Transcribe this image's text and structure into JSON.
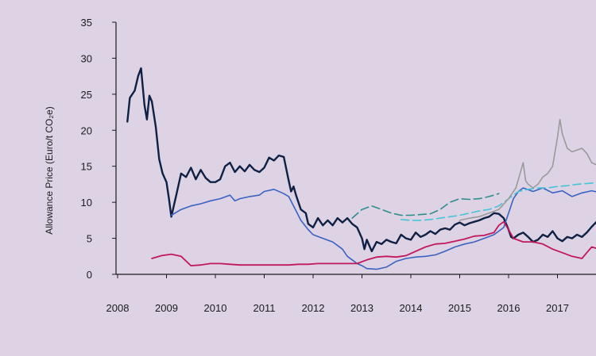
{
  "chart_data": {
    "type": "line",
    "title": "",
    "ylabel": "Allowance Price (Euro/t CO₂e)",
    "xlabel": "",
    "xlim": [
      2008,
      2018
    ],
    "ylim": [
      0,
      35
    ],
    "yticks": [
      0,
      5,
      10,
      15,
      20,
      25,
      30,
      35
    ],
    "xticks": [
      2008,
      2009,
      2010,
      2011,
      2012,
      2013,
      2014,
      2015,
      2016,
      2017
    ],
    "grid": false,
    "legend": "none",
    "series": [
      {
        "name": "series-navy",
        "color": "#0f2044",
        "dash": "",
        "width": 2.4,
        "points": [
          [
            2008.2,
            21.2
          ],
          [
            2008.25,
            24.5
          ],
          [
            2008.35,
            25.5
          ],
          [
            2008.42,
            27.5
          ],
          [
            2008.48,
            28.6
          ],
          [
            2008.55,
            23.5
          ],
          [
            2008.6,
            21.5
          ],
          [
            2008.65,
            24.8
          ],
          [
            2008.7,
            24.0
          ],
          [
            2008.78,
            20.5
          ],
          [
            2008.85,
            16.0
          ],
          [
            2008.92,
            14.0
          ],
          [
            2009.0,
            12.8
          ],
          [
            2009.05,
            10.5
          ],
          [
            2009.1,
            8.0
          ],
          [
            2009.2,
            11.0
          ],
          [
            2009.3,
            14.0
          ],
          [
            2009.4,
            13.5
          ],
          [
            2009.5,
            14.8
          ],
          [
            2009.6,
            13.2
          ],
          [
            2009.7,
            14.5
          ],
          [
            2009.8,
            13.4
          ],
          [
            2009.9,
            12.8
          ],
          [
            2010.0,
            12.8
          ],
          [
            2010.1,
            13.2
          ],
          [
            2010.2,
            15.0
          ],
          [
            2010.3,
            15.5
          ],
          [
            2010.4,
            14.2
          ],
          [
            2010.5,
            15.0
          ],
          [
            2010.6,
            14.3
          ],
          [
            2010.7,
            15.2
          ],
          [
            2010.8,
            14.5
          ],
          [
            2010.9,
            14.2
          ],
          [
            2011.0,
            14.8
          ],
          [
            2011.1,
            16.2
          ],
          [
            2011.2,
            15.8
          ],
          [
            2011.3,
            16.5
          ],
          [
            2011.4,
            16.3
          ],
          [
            2011.5,
            13.0
          ],
          [
            2011.55,
            11.5
          ],
          [
            2011.6,
            12.2
          ],
          [
            2011.65,
            11.0
          ],
          [
            2011.75,
            9.0
          ],
          [
            2011.85,
            8.5
          ],
          [
            2011.9,
            7.0
          ],
          [
            2012.0,
            6.5
          ],
          [
            2012.1,
            7.8
          ],
          [
            2012.2,
            6.8
          ],
          [
            2012.3,
            7.5
          ],
          [
            2012.4,
            6.8
          ],
          [
            2012.5,
            7.8
          ],
          [
            2012.6,
            7.2
          ],
          [
            2012.7,
            7.8
          ],
          [
            2012.8,
            7.0
          ],
          [
            2012.9,
            6.5
          ],
          [
            2013.0,
            5.0
          ],
          [
            2013.05,
            3.5
          ],
          [
            2013.1,
            4.8
          ],
          [
            2013.2,
            3.2
          ],
          [
            2013.3,
            4.5
          ],
          [
            2013.4,
            4.2
          ],
          [
            2013.5,
            4.8
          ],
          [
            2013.6,
            4.5
          ],
          [
            2013.7,
            4.3
          ],
          [
            2013.8,
            5.5
          ],
          [
            2013.9,
            5.0
          ],
          [
            2014.0,
            4.8
          ],
          [
            2014.1,
            5.8
          ],
          [
            2014.2,
            5.2
          ],
          [
            2014.3,
            5.5
          ],
          [
            2014.4,
            6.0
          ],
          [
            2014.5,
            5.6
          ],
          [
            2014.6,
            6.2
          ],
          [
            2014.7,
            6.4
          ],
          [
            2014.8,
            6.2
          ],
          [
            2014.9,
            6.9
          ],
          [
            2015.0,
            7.2
          ],
          [
            2015.1,
            6.8
          ],
          [
            2015.2,
            7.1
          ],
          [
            2015.3,
            7.3
          ],
          [
            2015.4,
            7.5
          ],
          [
            2015.5,
            7.8
          ],
          [
            2015.6,
            8.0
          ],
          [
            2015.7,
            8.5
          ],
          [
            2015.8,
            8.4
          ],
          [
            2015.9,
            7.8
          ],
          [
            2016.0,
            6.2
          ],
          [
            2016.05,
            5.2
          ],
          [
            2016.1,
            5.0
          ],
          [
            2016.2,
            5.5
          ],
          [
            2016.3,
            5.8
          ],
          [
            2016.4,
            5.2
          ],
          [
            2016.5,
            4.5
          ],
          [
            2016.6,
            4.8
          ],
          [
            2016.7,
            5.5
          ],
          [
            2016.8,
            5.2
          ],
          [
            2016.9,
            6.0
          ],
          [
            2017.0,
            5.0
          ],
          [
            2017.1,
            4.6
          ],
          [
            2017.2,
            5.2
          ],
          [
            2017.3,
            5.0
          ],
          [
            2017.4,
            5.5
          ],
          [
            2017.5,
            5.2
          ],
          [
            2017.6,
            5.8
          ],
          [
            2017.7,
            6.6
          ],
          [
            2017.8,
            7.3
          ],
          [
            2017.9,
            7.6
          ]
        ]
      },
      {
        "name": "series-blue",
        "color": "#3a62c2",
        "dash": "",
        "width": 1.6,
        "points": [
          [
            2009.1,
            8.2
          ],
          [
            2009.3,
            9.0
          ],
          [
            2009.5,
            9.5
          ],
          [
            2009.7,
            9.8
          ],
          [
            2009.9,
            10.2
          ],
          [
            2010.1,
            10.5
          ],
          [
            2010.3,
            11.0
          ],
          [
            2010.4,
            10.2
          ],
          [
            2010.5,
            10.5
          ],
          [
            2010.7,
            10.8
          ],
          [
            2010.9,
            11.0
          ],
          [
            2011.0,
            11.5
          ],
          [
            2011.2,
            11.8
          ],
          [
            2011.4,
            11.2
          ],
          [
            2011.5,
            10.8
          ],
          [
            2011.6,
            9.5
          ],
          [
            2011.75,
            7.5
          ],
          [
            2011.9,
            6.2
          ],
          [
            2012.0,
            5.5
          ],
          [
            2012.2,
            5.0
          ],
          [
            2012.4,
            4.5
          ],
          [
            2012.6,
            3.5
          ],
          [
            2012.7,
            2.5
          ],
          [
            2012.8,
            2.0
          ],
          [
            2012.9,
            1.5
          ],
          [
            2013.0,
            1.2
          ],
          [
            2013.1,
            0.8
          ],
          [
            2013.3,
            0.7
          ],
          [
            2013.5,
            1.0
          ],
          [
            2013.7,
            1.8
          ],
          [
            2013.9,
            2.2
          ],
          [
            2014.1,
            2.4
          ],
          [
            2014.3,
            2.5
          ],
          [
            2014.5,
            2.7
          ],
          [
            2014.7,
            3.2
          ],
          [
            2014.9,
            3.8
          ],
          [
            2015.1,
            4.2
          ],
          [
            2015.3,
            4.5
          ],
          [
            2015.5,
            5.0
          ],
          [
            2015.7,
            5.5
          ],
          [
            2015.9,
            6.5
          ],
          [
            2016.0,
            8.5
          ],
          [
            2016.1,
            10.5
          ],
          [
            2016.2,
            11.5
          ],
          [
            2016.3,
            12.0
          ],
          [
            2016.5,
            11.5
          ],
          [
            2016.7,
            12.0
          ],
          [
            2016.9,
            11.3
          ],
          [
            2017.1,
            11.6
          ],
          [
            2017.3,
            10.8
          ],
          [
            2017.5,
            11.3
          ],
          [
            2017.7,
            11.6
          ],
          [
            2017.9,
            11.3
          ]
        ]
      },
      {
        "name": "series-crimson",
        "color": "#c2185b",
        "dash": "",
        "width": 1.8,
        "points": [
          [
            2008.7,
            2.2
          ],
          [
            2008.9,
            2.6
          ],
          [
            2009.1,
            2.8
          ],
          [
            2009.3,
            2.5
          ],
          [
            2009.5,
            1.2
          ],
          [
            2009.7,
            1.3
          ],
          [
            2009.9,
            1.5
          ],
          [
            2010.1,
            1.5
          ],
          [
            2010.3,
            1.4
          ],
          [
            2010.5,
            1.3
          ],
          [
            2010.7,
            1.3
          ],
          [
            2010.9,
            1.3
          ],
          [
            2011.1,
            1.3
          ],
          [
            2011.3,
            1.3
          ],
          [
            2011.5,
            1.3
          ],
          [
            2011.7,
            1.4
          ],
          [
            2011.9,
            1.4
          ],
          [
            2012.1,
            1.5
          ],
          [
            2012.3,
            1.5
          ],
          [
            2012.5,
            1.5
          ],
          [
            2012.7,
            1.5
          ],
          [
            2012.9,
            1.5
          ],
          [
            2013.1,
            2.0
          ],
          [
            2013.3,
            2.4
          ],
          [
            2013.5,
            2.5
          ],
          [
            2013.7,
            2.4
          ],
          [
            2013.9,
            2.6
          ],
          [
            2014.1,
            3.2
          ],
          [
            2014.3,
            3.8
          ],
          [
            2014.5,
            4.2
          ],
          [
            2014.7,
            4.3
          ],
          [
            2014.9,
            4.6
          ],
          [
            2015.1,
            4.9
          ],
          [
            2015.3,
            5.3
          ],
          [
            2015.5,
            5.4
          ],
          [
            2015.7,
            5.8
          ],
          [
            2015.8,
            6.8
          ],
          [
            2015.9,
            7.3
          ],
          [
            2016.0,
            6.2
          ],
          [
            2016.1,
            5.0
          ],
          [
            2016.3,
            4.5
          ],
          [
            2016.5,
            4.5
          ],
          [
            2016.7,
            4.2
          ],
          [
            2016.9,
            3.5
          ],
          [
            2017.1,
            3.0
          ],
          [
            2017.3,
            2.5
          ],
          [
            2017.5,
            2.2
          ],
          [
            2017.6,
            3.0
          ],
          [
            2017.7,
            3.8
          ],
          [
            2017.9,
            3.4
          ]
        ]
      },
      {
        "name": "series-teal-dashed",
        "color": "#2f8c8c",
        "dash": "10,5",
        "width": 1.6,
        "points": [
          [
            2012.8,
            7.8
          ],
          [
            2013.0,
            9.0
          ],
          [
            2013.2,
            9.5
          ],
          [
            2013.4,
            9.0
          ],
          [
            2013.6,
            8.5
          ],
          [
            2013.8,
            8.2
          ],
          [
            2014.0,
            8.2
          ],
          [
            2014.2,
            8.3
          ],
          [
            2014.4,
            8.4
          ],
          [
            2014.6,
            9.0
          ],
          [
            2014.8,
            10.0
          ],
          [
            2015.0,
            10.5
          ],
          [
            2015.2,
            10.4
          ],
          [
            2015.4,
            10.5
          ],
          [
            2015.6,
            10.8
          ],
          [
            2015.8,
            11.2
          ]
        ]
      },
      {
        "name": "series-cyan-dashed",
        "color": "#45c4d8",
        "dash": "10,5",
        "width": 1.6,
        "points": [
          [
            2013.8,
            7.6
          ],
          [
            2014.0,
            7.5
          ],
          [
            2014.2,
            7.5
          ],
          [
            2014.4,
            7.6
          ],
          [
            2014.6,
            7.8
          ],
          [
            2014.8,
            8.0
          ],
          [
            2015.0,
            8.2
          ],
          [
            2015.2,
            8.5
          ],
          [
            2015.4,
            8.8
          ],
          [
            2015.6,
            9.0
          ],
          [
            2015.8,
            9.5
          ],
          [
            2016.0,
            10.5
          ],
          [
            2016.2,
            11.5
          ],
          [
            2016.4,
            11.8
          ],
          [
            2016.6,
            12.0
          ],
          [
            2016.8,
            12.0
          ],
          [
            2017.0,
            12.2
          ],
          [
            2017.2,
            12.3
          ],
          [
            2017.4,
            12.5
          ],
          [
            2017.6,
            12.6
          ],
          [
            2017.9,
            12.8
          ]
        ]
      },
      {
        "name": "series-grey",
        "color": "#9a9a9a",
        "dash": "",
        "width": 1.6,
        "points": [
          [
            2015.0,
            7.5
          ],
          [
            2015.2,
            7.8
          ],
          [
            2015.4,
            8.0
          ],
          [
            2015.6,
            8.5
          ],
          [
            2015.8,
            9.0
          ],
          [
            2016.0,
            10.5
          ],
          [
            2016.15,
            12.0
          ],
          [
            2016.3,
            15.5
          ],
          [
            2016.35,
            13.0
          ],
          [
            2016.4,
            12.5
          ],
          [
            2016.5,
            12.0
          ],
          [
            2016.6,
            12.5
          ],
          [
            2016.7,
            13.5
          ],
          [
            2016.8,
            14.0
          ],
          [
            2016.9,
            15.0
          ],
          [
            2017.0,
            19.0
          ],
          [
            2017.05,
            21.5
          ],
          [
            2017.1,
            19.5
          ],
          [
            2017.2,
            17.5
          ],
          [
            2017.3,
            17.0
          ],
          [
            2017.5,
            17.5
          ],
          [
            2017.6,
            16.8
          ],
          [
            2017.7,
            15.5
          ],
          [
            2017.8,
            15.2
          ],
          [
            2017.9,
            16.0
          ],
          [
            2018.0,
            16.8
          ]
        ]
      }
    ]
  }
}
